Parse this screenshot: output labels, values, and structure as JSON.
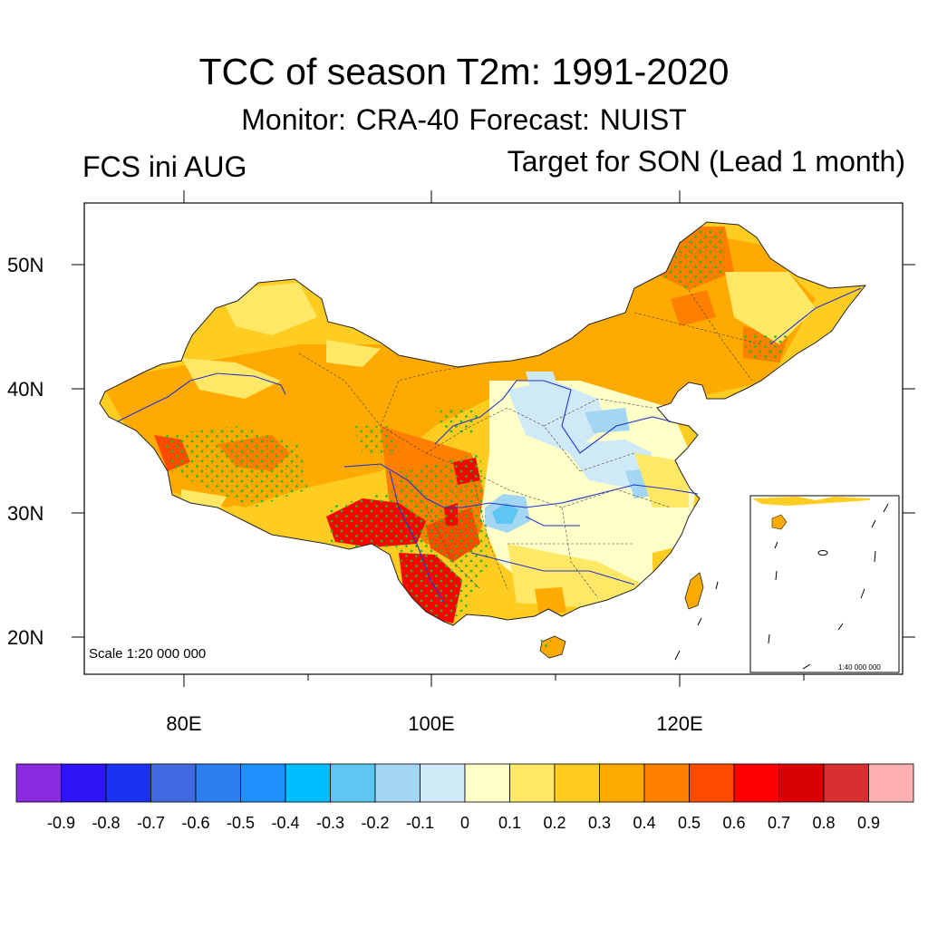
{
  "title": "TCC of season T2m: 1991-2020",
  "subtitle": "Monitor: CRA-40   Forecast: NUIST",
  "left_label": "FCS ini AUG",
  "right_label": "Target for SON (Lead 1 month)",
  "scale_text": "Scale 1:20 000 000",
  "inset_scale_text": "1:40 000 000",
  "lat_labels": [
    "50N",
    "40N",
    "30N",
    "20N"
  ],
  "lon_labels": [
    "80E",
    "100E",
    "120E"
  ],
  "colorbar": {
    "labels": [
      "-0.9",
      "-0.8",
      "-0.7",
      "-0.6",
      "-0.5",
      "-0.4",
      "-0.3",
      "-0.2",
      "-0.1",
      "0",
      "0.1",
      "0.2",
      "0.3",
      "0.4",
      "0.5",
      "0.6",
      "0.7",
      "0.8",
      "0.9"
    ],
    "colors": [
      "#8a2be2",
      "#2f14f4",
      "#1a33f0",
      "#4169e1",
      "#2a7ef0",
      "#1e90ff",
      "#00bfff",
      "#5ec6f2",
      "#a2d6f2",
      "#cfe9f7",
      "#ffffc8",
      "#ffe866",
      "#ffcc22",
      "#ffaa00",
      "#ff8000",
      "#ff4a00",
      "#ff0000",
      "#d80000",
      "#d83030",
      "#ffb0b0"
    ]
  }
}
